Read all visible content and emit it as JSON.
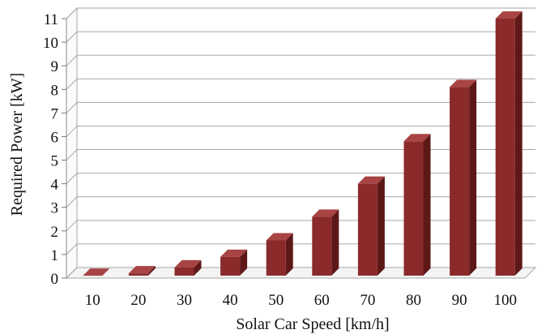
{
  "chart_data": {
    "type": "bar",
    "style": "3d-column",
    "xlabel": "Solar Car Speed [km/h]",
    "ylabel": "Required Power [kW]",
    "categories": [
      "10",
      "20",
      "30",
      "40",
      "50",
      "60",
      "70",
      "80",
      "90",
      "100"
    ],
    "series": [
      {
        "values": [
          0.1,
          0.2,
          0.45,
          0.9,
          1.6,
          2.6,
          4.0,
          5.8,
          8.1,
          11.0
        ]
      }
    ],
    "ylim": [
      0,
      11
    ],
    "yticks": [
      "0",
      "1",
      "2",
      "3",
      "4",
      "5",
      "6",
      "7",
      "8",
      "9",
      "10",
      "11"
    ],
    "grid": true,
    "legend": "none",
    "colors": {
      "bar_front": "#8b2a2a",
      "bar_side": "#5e1818",
      "bar_top": "#a94444",
      "gridline": "#a6a6a6",
      "wall": "#ffffff"
    }
  }
}
